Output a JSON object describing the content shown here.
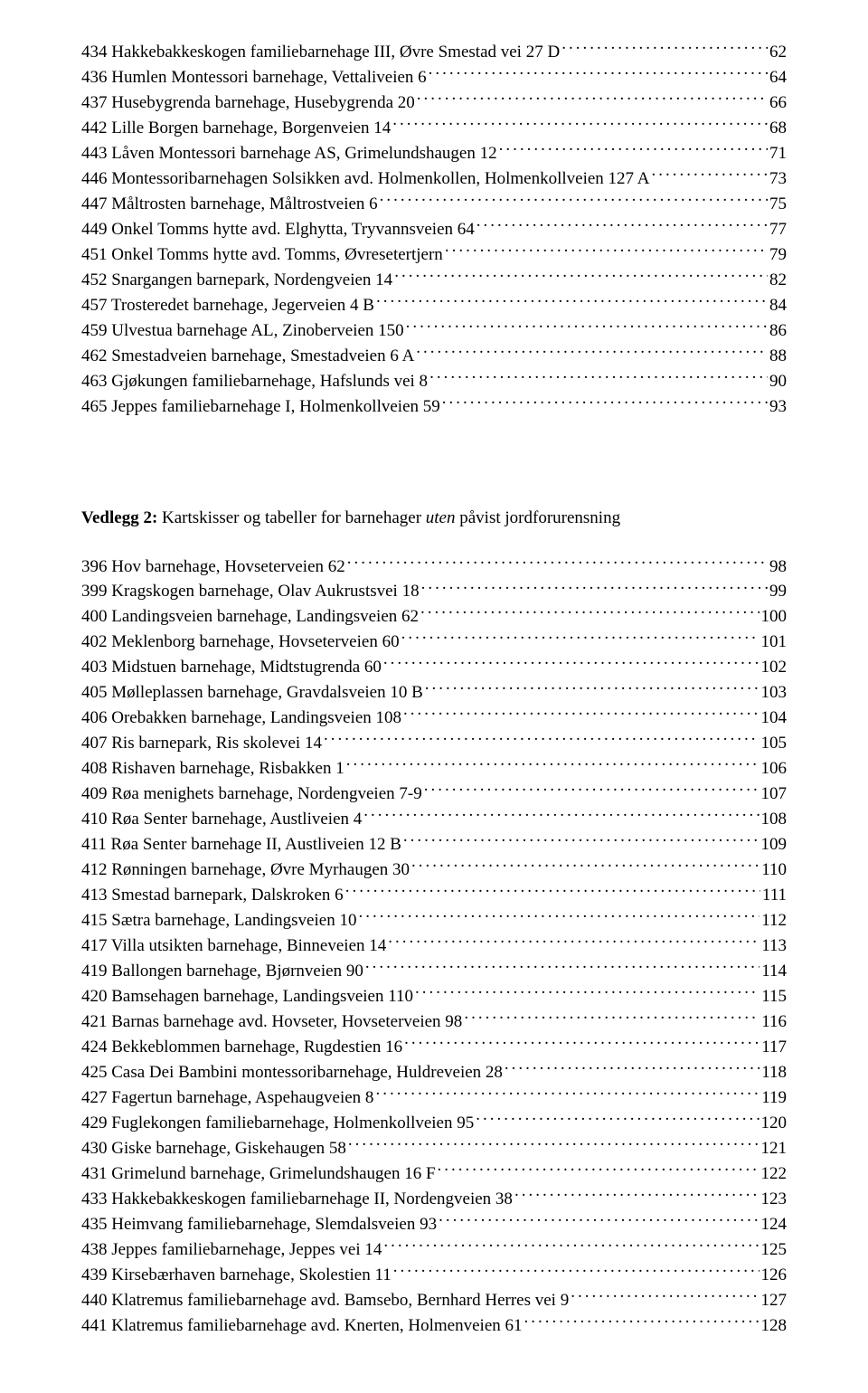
{
  "toc1": [
    {
      "label": "434 Hakkebakkeskogen familiebarnehage III, Øvre Smestad vei 27 D",
      "page": "62"
    },
    {
      "label": "436 Humlen Montessori barnehage, Vettaliveien 6",
      "page": "64"
    },
    {
      "label": "437 Husebygrenda barnehage, Husebygrenda 20",
      "page": "66"
    },
    {
      "label": "442 Lille Borgen barnehage, Borgenveien 14",
      "page": "68"
    },
    {
      "label": "443 Låven Montessori barnehage AS, Grimelundshaugen 12",
      "page": "71"
    },
    {
      "label": "446 Montessoribarnehagen Solsikken avd. Holmenkollen, Holmenkollveien 127 A",
      "page": "73"
    },
    {
      "label": "447 Måltrosten barnehage, Måltrostveien 6",
      "page": "75"
    },
    {
      "label": "449 Onkel Tomms hytte avd. Elghytta, Tryvannsveien 64",
      "page": "77"
    },
    {
      "label": "451 Onkel Tomms hytte avd. Tomms, Øvresetertjern",
      "page": "79"
    },
    {
      "label": "452 Snargangen barnepark, Nordengveien 14",
      "page": "82"
    },
    {
      "label": "457 Trosteredet barnehage, Jegerveien 4 B",
      "page": "84"
    },
    {
      "label": "459 Ulvestua barnehage AL, Zinoberveien 150",
      "page": "86"
    },
    {
      "label": "462 Smestadveien barnehage, Smestadveien 6 A",
      "page": "88"
    },
    {
      "label": "463 Gjøkungen familiebarnehage, Hafslunds vei 8",
      "page": "90"
    },
    {
      "label": "465 Jeppes familiebarnehage I, Holmenkollveien 59",
      "page": "93"
    }
  ],
  "section2": {
    "bold": "Vedlegg 2:",
    "rest_before_italic": " Kartskisser og tabeller for barnehager ",
    "italic": "uten",
    "rest_after_italic": " påvist jordforurensning"
  },
  "toc2": [
    {
      "label": "396 Hov barnehage, Hovseterveien 62",
      "page": "98"
    },
    {
      "label": "399 Kragskogen barnehage, Olav Aukrustsvei 18",
      "page": "99"
    },
    {
      "label": "400 Landingsveien barnehage, Landingsveien 62",
      "page": "100"
    },
    {
      "label": "402 Meklenborg barnehage, Hovseterveien 60",
      "page": "101"
    },
    {
      "label": "403 Midstuen barnehage, Midtstugrenda 60",
      "page": "102"
    },
    {
      "label": "405 Mølleplassen barnehage, Gravdalsveien 10 B",
      "page": "103"
    },
    {
      "label": "406 Orebakken barnehage, Landingsveien 108",
      "page": "104"
    },
    {
      "label": "407 Ris barnepark, Ris skolevei 14",
      "page": "105"
    },
    {
      "label": "408 Rishaven barnehage, Risbakken 1",
      "page": "106"
    },
    {
      "label": "409 Røa menighets barnehage, Nordengveien 7-9",
      "page": "107"
    },
    {
      "label": "410 Røa Senter barnehage, Austliveien 4",
      "page": "108"
    },
    {
      "label": "411 Røa Senter barnehage II, Austliveien 12 B",
      "page": "109"
    },
    {
      "label": "412 Rønningen barnehage, Øvre Myrhaugen 30",
      "page": "110"
    },
    {
      "label": "413 Smestad barnepark, Dalskroken 6",
      "page": "111"
    },
    {
      "label": "415 Sætra barnehage, Landingsveien 10",
      "page": "112"
    },
    {
      "label": "417 Villa utsikten barnehage, Binneveien 14",
      "page": "113"
    },
    {
      "label": "419 Ballongen barnehage, Bjørnveien 90",
      "page": "114"
    },
    {
      "label": "420 Bamsehagen barnehage, Landingsveien 110",
      "page": "115"
    },
    {
      "label": "421 Barnas barnehage avd. Hovseter, Hovseterveien 98",
      "page": "116"
    },
    {
      "label": "424 Bekkeblommen barnehage, Rugdestien 16",
      "page": "117"
    },
    {
      "label": "425 Casa Dei Bambini montessoribarnehage, Huldreveien 28",
      "page": "118"
    },
    {
      "label": "427 Fagertun barnehage, Aspehaugveien 8",
      "page": "119"
    },
    {
      "label": "429 Fuglekongen familiebarnehage, Holmenkollveien 95",
      "page": "120"
    },
    {
      "label": "430 Giske barnehage, Giskehaugen 58",
      "page": "121"
    },
    {
      "label": "431 Grimelund barnehage, Grimelundshaugen 16 F",
      "page": "122"
    },
    {
      "label": "433 Hakkebakkeskogen familiebarnehage II, Nordengveien 38",
      "page": "123"
    },
    {
      "label": "435 Heimvang familiebarnehage, Slemdalsveien 93",
      "page": "124"
    },
    {
      "label": "438 Jeppes familiebarnehage, Jeppes vei 14",
      "page": "125"
    },
    {
      "label": "439 Kirsebærhaven barnehage, Skolestien 11",
      "page": "126"
    },
    {
      "label": "440 Klatremus familiebarnehage avd. Bamsebo, Bernhard Herres vei 9",
      "page": "127"
    },
    {
      "label": "441 Klatremus familiebarnehage avd. Knerten, Holmenveien 61",
      "page": "128"
    }
  ]
}
